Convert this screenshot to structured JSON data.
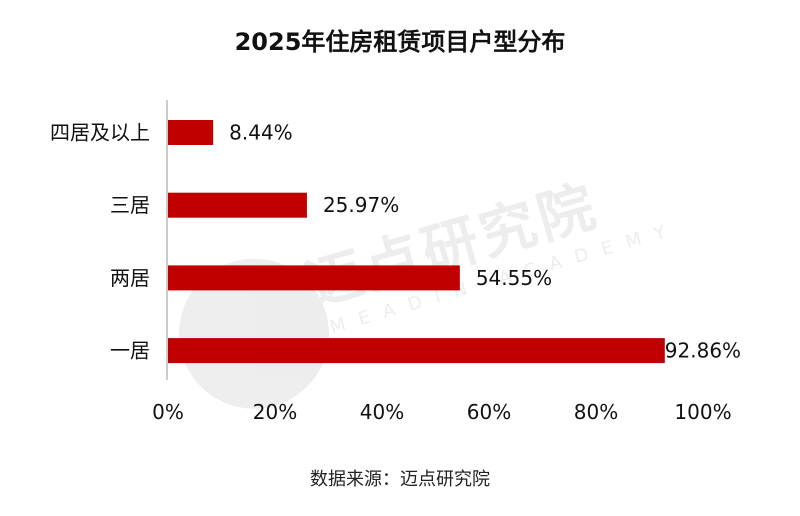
{
  "chart_data": {
    "type": "bar",
    "orientation": "horizontal",
    "title": "2025年住房租赁项目户型分布",
    "categories": [
      "四居及以上",
      "三居",
      "两居",
      "一居"
    ],
    "values": [
      8.44,
      25.97,
      54.55,
      92.86
    ],
    "value_labels": [
      "8.44%",
      "25.97%",
      "54.55%",
      "92.86%"
    ],
    "xlim": [
      0,
      100
    ],
    "x_ticks": [
      0,
      20,
      40,
      60,
      80,
      100
    ],
    "x_tick_labels": [
      "0%",
      "20%",
      "40%",
      "60%",
      "80%",
      "100%"
    ],
    "bar_color": "#C00000",
    "grid": false,
    "legend": "none"
  },
  "source": "数据来源：迈点研究院",
  "watermark": {
    "main": "迈点研究院",
    "sub": "MEADIN ACADEMY"
  }
}
